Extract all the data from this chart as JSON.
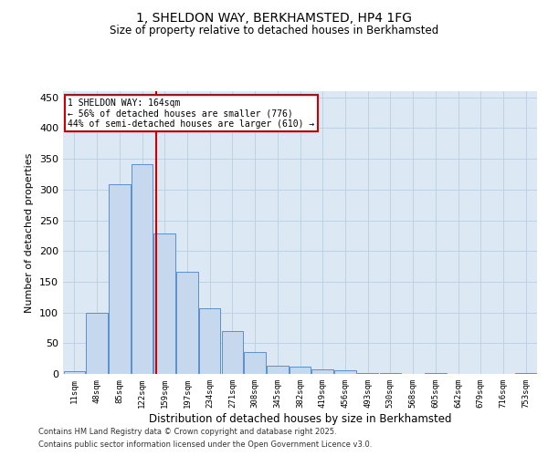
{
  "title_line1": "1, SHELDON WAY, BERKHAMSTED, HP4 1FG",
  "title_line2": "Size of property relative to detached houses in Berkhamsted",
  "xlabel": "Distribution of detached houses by size in Berkhamsted",
  "ylabel": "Number of detached properties",
  "categories": [
    "11sqm",
    "48sqm",
    "85sqm",
    "122sqm",
    "159sqm",
    "197sqm",
    "234sqm",
    "271sqm",
    "308sqm",
    "345sqm",
    "382sqm",
    "419sqm",
    "456sqm",
    "493sqm",
    "530sqm",
    "568sqm",
    "605sqm",
    "642sqm",
    "679sqm",
    "716sqm",
    "753sqm"
  ],
  "values": [
    4,
    100,
    308,
    341,
    229,
    166,
    107,
    70,
    35,
    13,
    12,
    7,
    6,
    1,
    1,
    0,
    1,
    0,
    0,
    0,
    1
  ],
  "bar_color": "#c5d8ed",
  "bar_edge_color": "#5b8fcc",
  "grid_color": "#b8cfe0",
  "background_color": "#dce9f5",
  "vline_color": "#cc0000",
  "vline_pos": 3.62,
  "annotation_text": "1 SHELDON WAY: 164sqm\n← 56% of detached houses are smaller (776)\n44% of semi-detached houses are larger (610) →",
  "annotation_box_color": "#cc0000",
  "ylim": [
    0,
    460
  ],
  "yticks": [
    0,
    50,
    100,
    150,
    200,
    250,
    300,
    350,
    400,
    450
  ],
  "footer_line1": "Contains HM Land Registry data © Crown copyright and database right 2025.",
  "footer_line2": "Contains public sector information licensed under the Open Government Licence v3.0."
}
